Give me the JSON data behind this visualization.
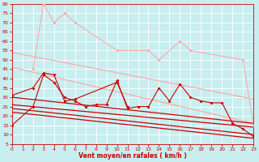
{
  "background_color": "#c8eef0",
  "grid_color": "#ffffff",
  "xlabel": "Vent moyen/en rafales ( km/h )",
  "xlabel_color": "#cc0000",
  "tick_color": "#cc0000",
  "xlim": [
    0,
    23
  ],
  "ylim": [
    5,
    80
  ],
  "yticks": [
    5,
    10,
    15,
    20,
    25,
    30,
    35,
    40,
    45,
    50,
    55,
    60,
    65,
    70,
    75,
    80
  ],
  "xticks": [
    0,
    1,
    2,
    3,
    4,
    5,
    6,
    7,
    8,
    9,
    10,
    11,
    12,
    13,
    14,
    15,
    16,
    17,
    18,
    19,
    20,
    21,
    22,
    23
  ],
  "pink_wavy": {
    "x": [
      2,
      3,
      4,
      5,
      6,
      10,
      13,
      14,
      16,
      17,
      22,
      23
    ],
    "y": [
      45,
      80,
      70,
      75,
      70,
      55,
      55,
      50,
      60,
      55,
      50,
      15
    ],
    "color": "#ffaaaa",
    "lw": 0.8,
    "marker": "D",
    "ms": 2.0
  },
  "pink_trend1": {
    "x": [
      0,
      23
    ],
    "y": [
      54,
      29
    ],
    "color": "#ffaaaa",
    "lw": 0.9
  },
  "pink_trend2": {
    "x": [
      0,
      23
    ],
    "y": [
      46,
      16
    ],
    "color": "#ffaaaa",
    "lw": 0.9
  },
  "dark_wavy": {
    "x": [
      0,
      2,
      3,
      4,
      5,
      6,
      7,
      8,
      9,
      10,
      11,
      12,
      13,
      14,
      15,
      16,
      17,
      18,
      19,
      20,
      21,
      22,
      23
    ],
    "y": [
      15,
      25,
      42,
      38,
      30,
      28,
      25,
      26,
      26,
      39,
      24,
      25,
      25,
      35,
      28,
      37,
      30,
      28,
      27,
      27,
      16,
      13,
      9
    ],
    "color": "#cc0000",
    "lw": 0.8,
    "marker": "D",
    "ms": 2.0
  },
  "dark_wavy2": {
    "x": [
      0,
      2,
      3,
      4,
      5,
      6,
      10,
      11
    ],
    "y": [
      31,
      35,
      43,
      42,
      28,
      29,
      38,
      25
    ],
    "color": "#cc0000",
    "lw": 0.8,
    "marker": "D",
    "ms": 2.0
  },
  "trend_lines": [
    {
      "x": [
        0,
        23
      ],
      "y": [
        30,
        16
      ],
      "color": "#cc0000",
      "lw": 0.9
    },
    {
      "x": [
        0,
        23
      ],
      "y": [
        26,
        14
      ],
      "color": "#cc0000",
      "lw": 0.9
    },
    {
      "x": [
        0,
        23
      ],
      "y": [
        24,
        10
      ],
      "color": "#cc0000",
      "lw": 0.9
    },
    {
      "x": [
        0,
        23
      ],
      "y": [
        22,
        8
      ],
      "color": "#cc0000",
      "lw": 0.9
    }
  ],
  "arrow_color": "#cc0000",
  "arrow_angles_deg": [
    0,
    0,
    0,
    0,
    0,
    0,
    0,
    0,
    0,
    0,
    0,
    0,
    0,
    0,
    0,
    0,
    0,
    0,
    0,
    0,
    30,
    50,
    75,
    90
  ]
}
